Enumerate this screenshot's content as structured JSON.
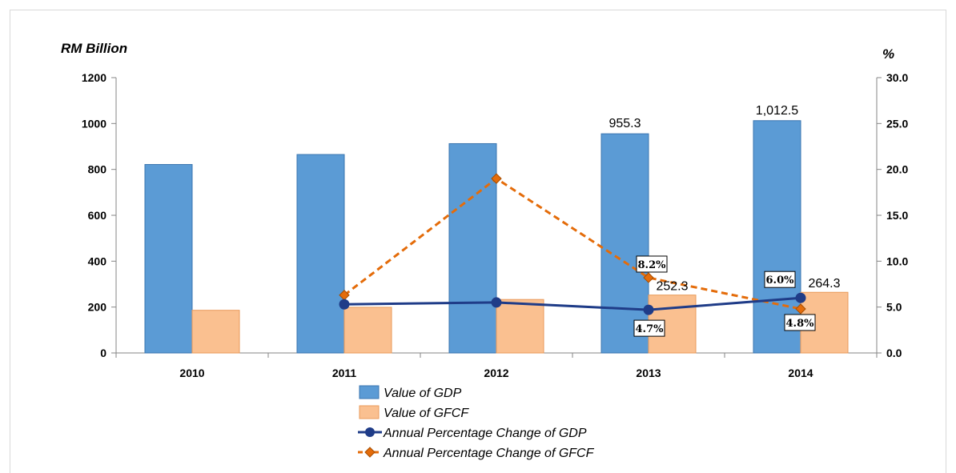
{
  "chart_data": {
    "type": "bar",
    "title": "",
    "categories": [
      "2010",
      "2011",
      "2012",
      "2013",
      "2014"
    ],
    "y_left": {
      "label": "RM Billion",
      "range": [
        0,
        1200
      ],
      "ticks": [
        "0",
        "200",
        "400",
        "600",
        "800",
        "1000",
        "1200"
      ]
    },
    "y_right": {
      "label": "%",
      "range": [
        0,
        30
      ],
      "ticks": [
        "0.0",
        "5.0",
        "10.0",
        "15.0",
        "20.0",
        "25.0",
        "30.0"
      ]
    },
    "grid": false,
    "legend_position": "bottom",
    "series": [
      {
        "name": "Value of GDP",
        "kind": "bar",
        "axis": "left",
        "color": "#5b9bd5",
        "values": [
          821.4,
          864.9,
          912.3,
          955.3,
          1012.5
        ],
        "labels": [
          "",
          "",
          "",
          "955.3",
          "1,012.5"
        ]
      },
      {
        "name": "Value of GFCF",
        "kind": "bar",
        "axis": "left",
        "color": "#fac090",
        "values": [
          186,
          199,
          233,
          252.3,
          264.3
        ],
        "labels": [
          "",
          "",
          "",
          "252.3",
          "264.3"
        ]
      },
      {
        "name": "Annual Percentage Change of GDP",
        "kind": "line",
        "axis": "right",
        "color": "#1f3c88",
        "values": [
          null,
          5.3,
          5.5,
          4.7,
          6.0
        ],
        "labels": [
          "",
          "",
          "",
          "4.7%",
          "6.0%"
        ]
      },
      {
        "name": "Annual Percentage Change of GFCF",
        "kind": "line",
        "axis": "right",
        "color": "#e46c0a",
        "values": [
          null,
          6.3,
          19.0,
          8.2,
          4.8
        ],
        "labels": [
          "",
          "",
          "",
          "8.2%",
          "4.8%"
        ]
      }
    ]
  }
}
